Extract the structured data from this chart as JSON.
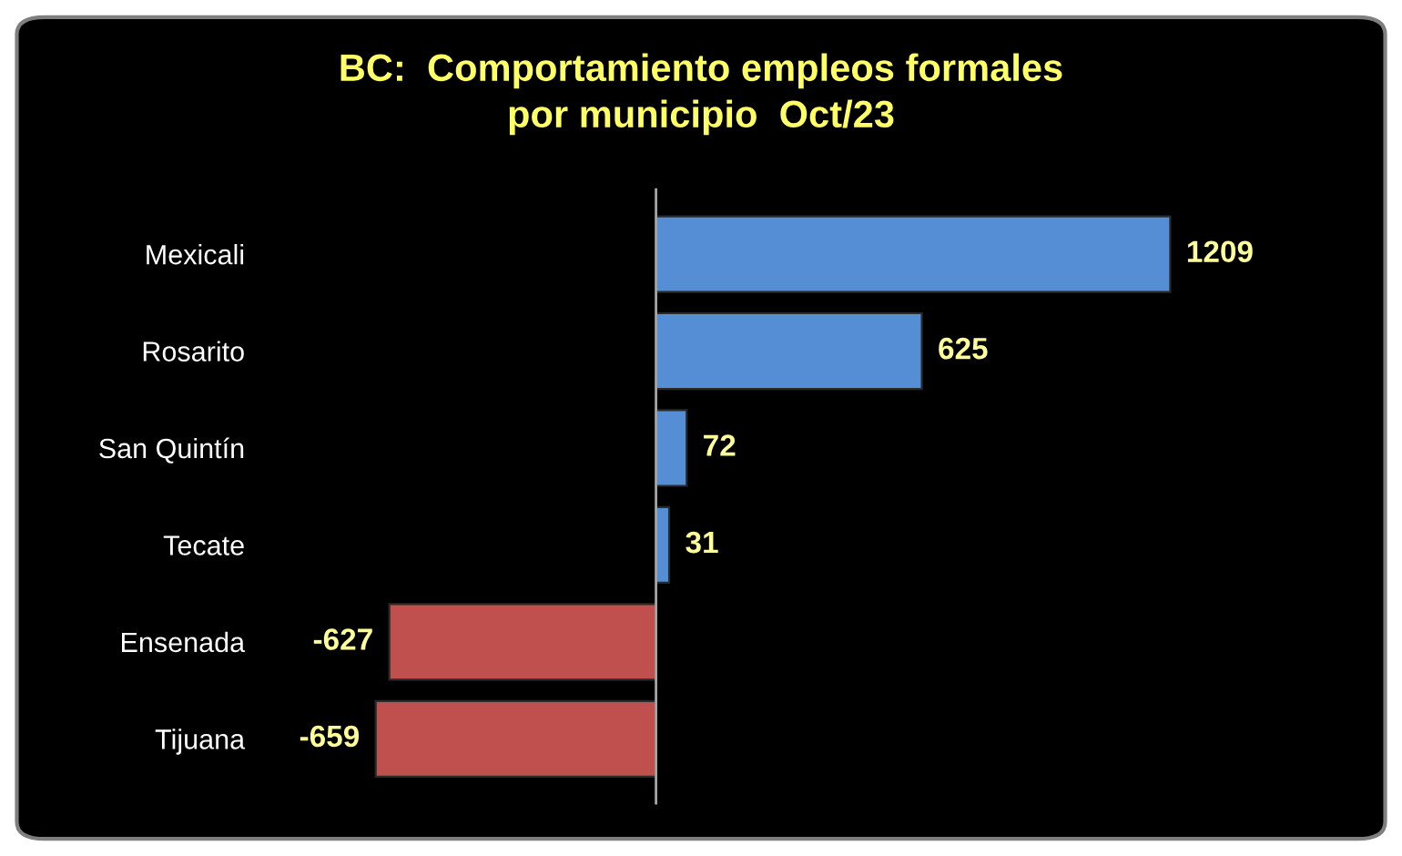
{
  "chart_data": {
    "type": "bar",
    "orientation": "horizontal",
    "title": "BC:  Comportamiento empleos formales\npor municipio  Oct/23",
    "categories": [
      "Mexicali",
      "Rosarito",
      "San Quintín",
      "Tecate",
      "Ensenada",
      "Tijuana"
    ],
    "values": [
      1209,
      625,
      72,
      31,
      -627,
      -659
    ],
    "colors": [
      "#558ed5",
      "#558ed5",
      "#558ed5",
      "#558ed5",
      "#c0504d",
      "#c0504d"
    ],
    "data_labels": true,
    "grid": false
  }
}
